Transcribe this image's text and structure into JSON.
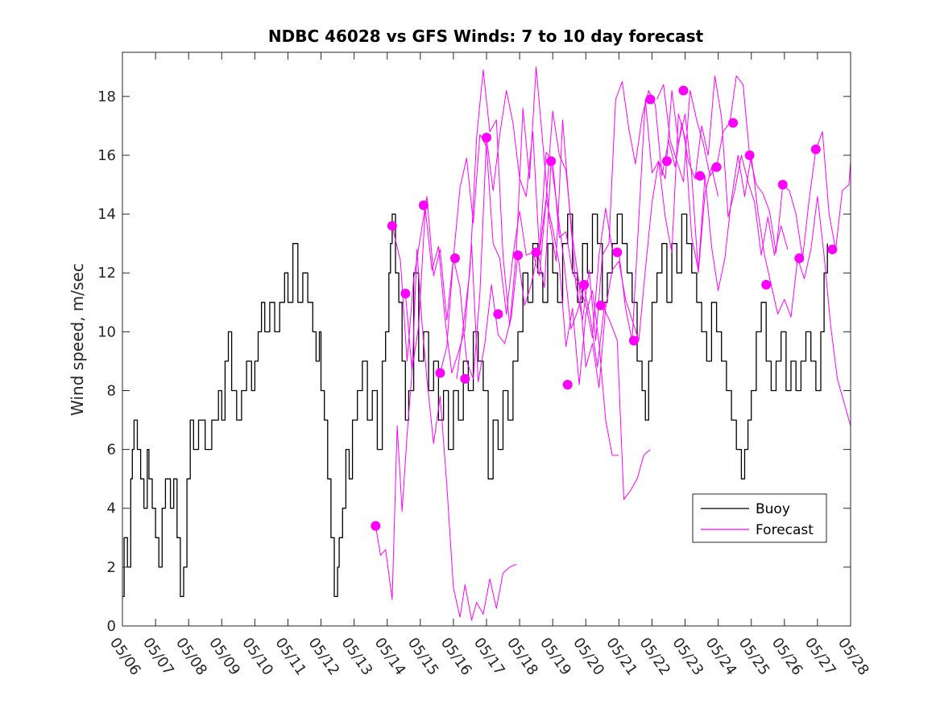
{
  "chart_data": {
    "type": "line",
    "title": "NDBC 46028 vs GFS Winds: 7 to 10 day forecast",
    "xlabel": "",
    "ylabel": "Wind speed, m/sec",
    "xlim": [
      0,
      22
    ],
    "ylim": [
      0,
      19.5
    ],
    "x_ticks": [
      {
        "value": 0,
        "label": "05/06"
      },
      {
        "value": 1,
        "label": "05/07"
      },
      {
        "value": 2,
        "label": "05/08"
      },
      {
        "value": 3,
        "label": "05/09"
      },
      {
        "value": 4,
        "label": "05/10"
      },
      {
        "value": 5,
        "label": "05/11"
      },
      {
        "value": 6,
        "label": "05/12"
      },
      {
        "value": 7,
        "label": "05/13"
      },
      {
        "value": 8,
        "label": "05/14"
      },
      {
        "value": 9,
        "label": "05/15"
      },
      {
        "value": 10,
        "label": "05/16"
      },
      {
        "value": 11,
        "label": "05/17"
      },
      {
        "value": 12,
        "label": "05/18"
      },
      {
        "value": 13,
        "label": "05/19"
      },
      {
        "value": 14,
        "label": "05/20"
      },
      {
        "value": 15,
        "label": "05/21"
      },
      {
        "value": 16,
        "label": "05/22"
      },
      {
        "value": 17,
        "label": "05/23"
      },
      {
        "value": 18,
        "label": "05/24"
      },
      {
        "value": 19,
        "label": "05/25"
      },
      {
        "value": 20,
        "label": "05/26"
      },
      {
        "value": 21,
        "label": "05/27"
      },
      {
        "value": 22,
        "label": "05/28"
      }
    ],
    "y_ticks": [
      {
        "value": 0,
        "label": "0"
      },
      {
        "value": 2,
        "label": "2"
      },
      {
        "value": 4,
        "label": "4"
      },
      {
        "value": 6,
        "label": "6"
      },
      {
        "value": 8,
        "label": "8"
      },
      {
        "value": 10,
        "label": "10"
      },
      {
        "value": 12,
        "label": "12"
      },
      {
        "value": 14,
        "label": "14"
      },
      {
        "value": 16,
        "label": "16"
      },
      {
        "value": 18,
        "label": "18"
      }
    ],
    "legend": {
      "placement": "lower-right",
      "entries": [
        {
          "name": "Buoy",
          "color": "#000000"
        },
        {
          "name": "Forecast",
          "color": "#ff00ff"
        }
      ]
    },
    "colors": {
      "buoy": "#000000",
      "forecast": "#ff00ff"
    },
    "series": [
      {
        "name": "Buoy",
        "role": "buoy",
        "x": [
          0,
          0.05,
          0.15,
          0.25,
          0.3,
          0.35,
          0.45,
          0.55,
          0.65,
          0.75,
          0.8,
          0.9,
          1.0,
          1.1,
          1.2,
          1.3,
          1.45,
          1.55,
          1.65,
          1.75,
          1.85,
          1.95,
          2.05,
          2.15,
          2.3,
          2.5,
          2.7,
          2.9,
          3.0,
          3.1,
          3.2,
          3.3,
          3.45,
          3.6,
          3.75,
          3.9,
          4.0,
          4.1,
          4.2,
          4.3,
          4.45,
          4.6,
          4.75,
          4.9,
          5.0,
          5.15,
          5.3,
          5.45,
          5.6,
          5.75,
          5.85,
          5.95,
          6.0,
          6.1,
          6.2,
          6.3,
          6.4,
          6.5,
          6.55,
          6.65,
          6.75,
          6.85,
          6.95,
          7.1,
          7.25,
          7.4,
          7.55,
          7.7,
          7.85,
          7.95,
          8.05,
          8.1,
          8.15,
          8.25,
          8.35,
          8.45,
          8.55,
          8.65,
          8.8,
          8.95,
          9.1,
          9.25,
          9.4,
          9.55,
          9.7,
          9.85,
          10.0,
          10.15,
          10.3,
          10.45,
          10.6,
          10.75,
          10.9,
          11.05,
          11.2,
          11.35,
          11.5,
          11.65,
          11.8,
          11.95,
          12.1,
          12.25,
          12.4,
          12.55,
          12.7,
          12.85,
          13.0,
          13.15,
          13.3,
          13.45,
          13.6,
          13.75,
          13.9,
          14.05,
          14.2,
          14.35,
          14.5,
          14.65,
          14.8,
          14.95,
          15.1,
          15.25,
          15.4,
          15.55,
          15.7,
          15.8,
          15.9,
          16.0,
          16.15,
          16.3,
          16.45,
          16.6,
          16.75,
          16.9,
          17.05,
          17.2,
          17.35,
          17.5,
          17.65,
          17.8,
          17.95,
          18.1,
          18.25,
          18.4,
          18.55,
          18.7,
          18.8,
          18.9,
          19.0,
          19.15,
          19.3,
          19.45,
          19.6,
          19.75,
          19.9,
          20.05,
          20.2,
          20.35,
          20.5,
          20.65,
          20.8,
          20.95,
          21.1,
          21.2,
          21.3
        ],
        "values": [
          1,
          3,
          2,
          5,
          6,
          7,
          6,
          5,
          4,
          6,
          5,
          4,
          3,
          2,
          4,
          5,
          4,
          5,
          3,
          1,
          2,
          5,
          7,
          6,
          7,
          6,
          7,
          8,
          7,
          9,
          10,
          8,
          7,
          8,
          9,
          8,
          9,
          10,
          11,
          10,
          11,
          10,
          11,
          12,
          11,
          13,
          11,
          12,
          11,
          10,
          9,
          10,
          8,
          7,
          5,
          3,
          1,
          2,
          3,
          4,
          6,
          5,
          7,
          8,
          9,
          7,
          8,
          6,
          9,
          10,
          12,
          13,
          14,
          12,
          11,
          9,
          7,
          8,
          12,
          9,
          10,
          8,
          9,
          7,
          8,
          6,
          8,
          7,
          9,
          8,
          10,
          9,
          8,
          5,
          7,
          6,
          8,
          7,
          9,
          10,
          12,
          11,
          13,
          12,
          11,
          13,
          12,
          11,
          13,
          14,
          12,
          11,
          13,
          12,
          14,
          13,
          11,
          12,
          13,
          14,
          13,
          12,
          11,
          9,
          8,
          7,
          9,
          11,
          12,
          13,
          11,
          13,
          12,
          14,
          13,
          12,
          11,
          10,
          9,
          11,
          10,
          9,
          8,
          7,
          6,
          5,
          6,
          7,
          8,
          10,
          11,
          9,
          8,
          9,
          10,
          8,
          9,
          8,
          9,
          10,
          9,
          8,
          10,
          12,
          13
        ]
      },
      {
        "name": "Forecast",
        "role": "forecast",
        "x": [
          7.65,
          7.8,
          7.95,
          8.15,
          8.3,
          8.45,
          8.6,
          8.75,
          8.9,
          9.05,
          9.2,
          9.4,
          9.6,
          9.8,
          10.0,
          10.2,
          10.35,
          10.55,
          10.7,
          10.9,
          11.1,
          11.3,
          11.5,
          11.7,
          11.9
        ],
        "values": [
          3.4,
          2.4,
          2.6,
          0.9,
          6.8,
          3.9,
          6.5,
          8.6,
          12.8,
          10.3,
          8.4,
          6.2,
          7.8,
          4.8,
          1.3,
          0.3,
          1.4,
          0.2,
          0.8,
          0.4,
          1.6,
          0.6,
          1.8,
          2.0,
          2.1
        ]
      },
      {
        "name": "Forecast",
        "role": "forecast",
        "x": [
          8.15,
          8.4,
          8.6,
          8.8,
          9.0,
          9.2,
          9.4,
          9.6,
          9.8,
          10.0,
          10.2,
          10.4,
          10.6,
          10.8,
          11.0,
          11.2,
          11.4,
          11.6,
          11.8,
          12.0,
          12.2,
          12.4,
          12.6,
          12.8,
          13.0,
          13.2,
          13.4,
          13.6,
          13.8,
          14.0,
          14.2,
          14.4,
          14.6,
          14.8,
          15.0
        ],
        "values": [
          13.6,
          12.4,
          9.0,
          11.8,
          13.2,
          14.6,
          11.9,
          12.8,
          10.4,
          12.5,
          11.5,
          9.0,
          8.4,
          11.3,
          16.6,
          14.8,
          16.7,
          18.2,
          17.1,
          15.2,
          14.6,
          16.8,
          12.7,
          14.5,
          13.5,
          12.3,
          9.5,
          10.8,
          8.2,
          10.6,
          11.4,
          9.6,
          7.0,
          5.8,
          5.8
        ]
      },
      {
        "name": "Forecast",
        "role": "forecast",
        "x": [
          8.55,
          8.75,
          8.95,
          9.15,
          9.35,
          9.55,
          9.75,
          9.95,
          10.15,
          10.35,
          10.55,
          10.75,
          10.95,
          11.15,
          11.35,
          11.55,
          11.75,
          11.95,
          12.15,
          12.35,
          12.55,
          12.75,
          12.95,
          13.15,
          13.35,
          13.55,
          13.75,
          13.95,
          14.15,
          14.35,
          14.55,
          14.75,
          14.95,
          15.15,
          15.35,
          15.55,
          15.75,
          15.95
        ],
        "values": [
          11.3,
          8.7,
          10.2,
          14.2,
          12.1,
          12.9,
          10.4,
          8.6,
          9.3,
          10.1,
          13.0,
          8.3,
          9.6,
          11.6,
          9.9,
          9.6,
          10.5,
          12.6,
          10.9,
          11.6,
          12.7,
          11.5,
          15.8,
          14.1,
          12.3,
          10.1,
          10.7,
          11.5,
          10.4,
          8.8,
          10.8,
          10.3,
          9.7,
          4.3,
          4.6,
          5.0,
          5.8,
          6.0
        ]
      },
      {
        "name": "Forecast",
        "role": "forecast",
        "x": [
          9.6,
          9.8,
          10.0,
          10.2,
          10.4,
          10.6,
          10.8,
          11.0,
          11.2,
          11.4,
          11.6,
          11.8,
          12.0,
          12.2,
          12.4,
          12.6,
          12.8,
          13.0,
          13.2,
          13.4,
          13.6,
          13.8,
          14.0,
          14.2,
          14.4,
          14.6,
          14.8,
          15.0,
          15.2,
          15.4,
          15.6,
          15.8,
          16.0,
          16.2,
          16.4,
          16.6,
          16.8,
          17.0,
          17.2,
          17.4,
          17.6,
          17.8,
          18.0
        ],
        "values": [
          8.6,
          9.5,
          12.5,
          14.9,
          15.9,
          13.7,
          16.7,
          16.3,
          13.0,
          12.5,
          10.6,
          12.6,
          14.1,
          12.6,
          12.7,
          11.9,
          14.5,
          17.5,
          16.0,
          15.5,
          13.2,
          11.6,
          10.9,
          9.8,
          12.6,
          14.2,
          12.8,
          12.7,
          10.8,
          9.7,
          13.8,
          17.9,
          15.4,
          15.8,
          15.2,
          18.2,
          16.4,
          17.4,
          15.3,
          12.0,
          14.7,
          15.6,
          14.6
        ]
      },
      {
        "name": "Forecast",
        "role": "forecast",
        "x": [
          10.1,
          10.3,
          10.5,
          10.7,
          10.9,
          11.1,
          11.3,
          11.5,
          11.7,
          11.9,
          12.1,
          12.3,
          12.5,
          12.7,
          12.9,
          13.1,
          13.3,
          13.5,
          13.7,
          13.9,
          14.1,
          14.3,
          14.5,
          14.7,
          14.9,
          15.1,
          15.3,
          15.5,
          15.7,
          15.9,
          16.1,
          16.3,
          16.5,
          16.7,
          16.9,
          17.1,
          17.3,
          17.5,
          17.7,
          17.9,
          18.1,
          18.3,
          18.5,
          18.7,
          18.9,
          19.1,
          19.3,
          19.5,
          19.7,
          19.9,
          20.1
        ],
        "values": [
          8.4,
          10.2,
          12.1,
          16.6,
          18.9,
          16.8,
          17.2,
          12.6,
          10.2,
          12.7,
          17.6,
          15.2,
          19.0,
          16.4,
          13.8,
          12.4,
          17.2,
          14.3,
          11.6,
          10.4,
          12.1,
          9.7,
          12.6,
          13.0,
          17.9,
          18.5,
          16.9,
          15.7,
          17.3,
          18.2,
          17.7,
          15.3,
          16.5,
          15.6,
          17.1,
          15.8,
          15.2,
          17.0,
          16.0,
          18.7,
          17.3,
          13.9,
          14.8,
          16.0,
          15.1,
          14.4,
          12.6,
          13.9,
          12.6,
          13.6,
          12.8
        ]
      },
      {
        "name": "Forecast",
        "role": "forecast",
        "x": [
          12.6,
          12.8,
          13.0,
          13.2,
          13.4,
          13.6,
          13.8,
          14.0,
          14.2,
          14.4,
          14.6,
          14.8,
          15.0,
          15.2,
          15.4,
          15.6,
          15.8,
          16.0,
          16.2,
          16.4,
          16.6,
          16.8,
          17.0,
          17.2,
          17.4,
          17.6,
          17.8,
          18.0,
          18.2,
          18.4,
          18.6,
          18.8,
          19.0,
          19.2,
          19.4,
          19.6,
          19.8,
          20.0,
          20.2,
          20.4,
          20.6,
          20.8,
          21.0,
          21.2,
          21.4,
          21.6,
          21.8,
          22.0
        ],
        "values": [
          12.7,
          16.1,
          15.8,
          13.2,
          13.4,
          12.0,
          11.6,
          8.8,
          9.6,
          8.1,
          10.8,
          12.1,
          12.4,
          11.1,
          10.4,
          9.7,
          12.1,
          14.4,
          15.8,
          13.9,
          12.7,
          17.4,
          16.6,
          13.2,
          12.1,
          15.3,
          12.9,
          11.4,
          12.5,
          14.5,
          16.0,
          14.6,
          16.0,
          14.1,
          12.6,
          11.6,
          10.6,
          11.1,
          10.5,
          12.5,
          11.8,
          12.8,
          14.6,
          12.6,
          10.2,
          8.4,
          7.6,
          6.8
        ]
      },
      {
        "name": "Forecast",
        "role": "forecast",
        "x": [
          16.15,
          16.35,
          16.55,
          16.75,
          16.95,
          17.15,
          17.35,
          17.55,
          17.75,
          17.95,
          18.15,
          18.35,
          18.55,
          18.75,
          18.95,
          19.15,
          19.35,
          19.55,
          19.75,
          19.95,
          20.15,
          20.35,
          20.55,
          20.75,
          20.95,
          21.15,
          21.35,
          21.55,
          21.75,
          21.95,
          22.0
        ],
        "values": [
          17.9,
          18.4,
          16.5,
          15.8,
          15.1,
          18.2,
          17.2,
          16.4,
          15.3,
          15.6,
          16.8,
          17.1,
          18.7,
          18.4,
          16.0,
          15.0,
          14.7,
          14.1,
          12.7,
          15.0,
          14.8,
          14.0,
          12.5,
          14.5,
          16.2,
          16.8,
          14.0,
          12.8,
          14.8,
          15.0,
          15.8
        ]
      }
    ],
    "markers": {
      "name": "Forecast",
      "x": [
        7.65,
        8.15,
        8.55,
        9.1,
        9.6,
        10.05,
        10.35,
        11.0,
        11.35,
        11.95,
        12.5,
        12.95,
        13.45,
        13.95,
        14.45,
        14.95,
        15.45,
        15.95,
        16.45,
        16.95,
        17.45,
        17.95,
        18.45,
        18.95,
        19.45,
        19.95,
        20.45,
        20.95,
        21.45
      ],
      "values": [
        3.4,
        13.6,
        11.3,
        14.3,
        8.6,
        12.5,
        8.4,
        16.6,
        10.6,
        12.6,
        12.7,
        15.8,
        8.2,
        11.6,
        10.9,
        12.7,
        9.7,
        17.9,
        15.8,
        18.2,
        15.3,
        15.6,
        17.1,
        16.0,
        11.6,
        15.0,
        12.5,
        16.2,
        12.8
      ]
    }
  }
}
